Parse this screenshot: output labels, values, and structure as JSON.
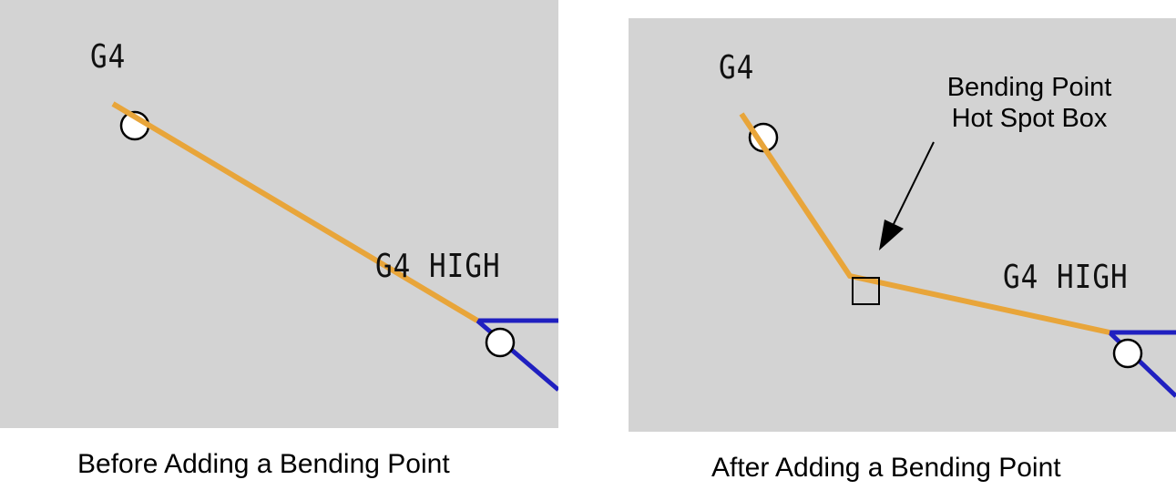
{
  "colors": {
    "background": "#d3d3d3",
    "orange_link": "#e8a53a",
    "blue_link": "#2020c0"
  },
  "before": {
    "caption": "Before Adding a Bending Point",
    "nodes": {
      "top_label": "G4",
      "bottom_label": "G4 HIGH"
    }
  },
  "after": {
    "caption": "After Adding a Bending Point",
    "nodes": {
      "top_label": "G4",
      "bottom_label": "G4 HIGH"
    },
    "callout": {
      "line1": "Bending Point",
      "line2": "Hot Spot Box"
    }
  }
}
